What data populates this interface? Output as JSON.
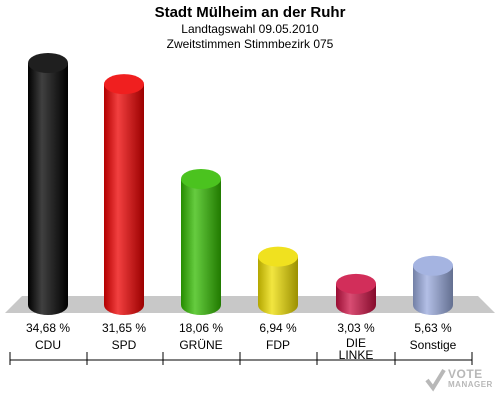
{
  "chart_data": {
    "type": "bar",
    "title": "Stadt Mülheim an der Ruhr",
    "subtitle_1": "Landtagswahl 09.05.2010",
    "subtitle_2": "Zweitstimmen Stimmbezirk 075",
    "categories": [
      "CDU",
      "SPD",
      "GRÜNE",
      "FDP",
      "DIE LINKE",
      "Sonstige"
    ],
    "values": [
      34.68,
      31.65,
      18.06,
      6.94,
      3.03,
      5.63
    ],
    "value_labels": [
      "34,68 %",
      "31,65 %",
      "18,06 %",
      "6,94 %",
      "3,03 %",
      "5,63 %"
    ],
    "colors": [
      "#000000",
      "#ee0000",
      "#33bb00",
      "#eedd00",
      "#cc1144",
      "#99aadd"
    ],
    "ylim": [
      0,
      34.68
    ]
  },
  "watermark": {
    "line1": "VOTE",
    "line2": "MANAGER"
  }
}
